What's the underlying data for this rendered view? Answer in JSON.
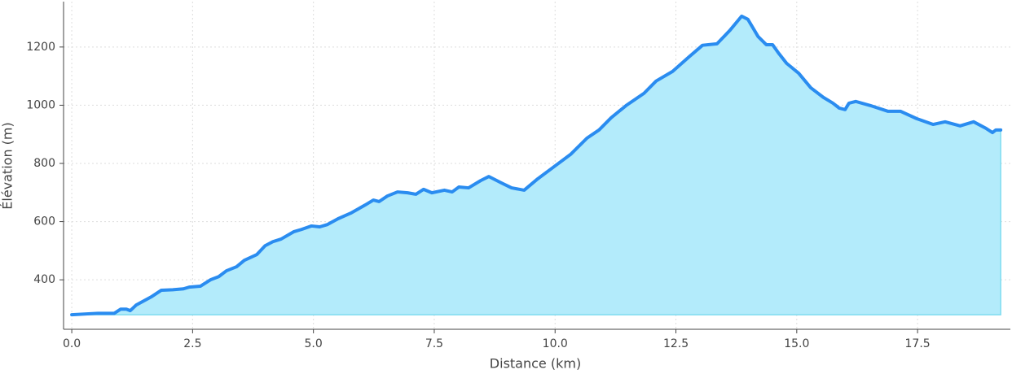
{
  "chart_data": {
    "type": "area-line",
    "x_label": "Distance (km)",
    "y_label": "Élévation (m)",
    "x": [
      0,
      0.54,
      0.88,
      1.01,
      1.13,
      1.21,
      1.33,
      1.64,
      1.85,
      2.09,
      2.31,
      2.43,
      2.66,
      2.87,
      3.04,
      3.2,
      3.41,
      3.57,
      3.83,
      4.0,
      4.16,
      4.33,
      4.59,
      4.75,
      4.96,
      5.13,
      5.29,
      5.51,
      5.77,
      6.07,
      6.24,
      6.36,
      6.53,
      6.74,
      6.95,
      7.12,
      7.28,
      7.45,
      7.71,
      7.87,
      8.01,
      8.21,
      8.46,
      8.63,
      8.89,
      9.1,
      9.36,
      9.64,
      9.98,
      10.32,
      10.66,
      10.91,
      11.16,
      11.47,
      11.84,
      12.09,
      12.43,
      12.77,
      13.05,
      13.35,
      13.61,
      13.86,
      13.99,
      14.2,
      14.37,
      14.5,
      14.62,
      14.79,
      15.04,
      15.29,
      15.55,
      15.75,
      15.88,
      16.0,
      16.08,
      16.22,
      16.52,
      16.89,
      17.15,
      17.48,
      17.82,
      18.07,
      18.38,
      18.66,
      18.92,
      19.05,
      19.12,
      19.22
    ],
    "series": [
      {
        "name": "Élévation",
        "color": "#2a8cf0",
        "fill": "#b3ebfb",
        "values": [
          280,
          285,
          285,
          299,
          299,
          294,
          313,
          341,
          364,
          366,
          369,
          375,
          378,
          400,
          411,
          431,
          445,
          467,
          487,
          517,
          531,
          540,
          565,
          573,
          585,
          582,
          590,
          610,
          629,
          657,
          674,
          669,
          688,
          702,
          699,
          694,
          711,
          699,
          708,
          702,
          719,
          716,
          741,
          755,
          733,
          716,
          708,
          747,
          789,
          831,
          887,
          915,
          957,
          999,
          1041,
          1083,
          1116,
          1166,
          1206,
          1211,
          1256,
          1306,
          1295,
          1236,
          1208,
          1208,
          1180,
          1144,
          1110,
          1060,
          1027,
          1007,
          990,
          985,
          1007,
          1013,
          999,
          979,
          979,
          954,
          934,
          943,
          929,
          943,
          920,
          906,
          915,
          915
        ]
      }
    ],
    "xlim": [
      -0.17,
      19.42
    ],
    "ylim": [
      230,
      1356
    ],
    "xticks": [
      {
        "value": 0,
        "label": "0.0"
      },
      2.5,
      {
        "value": 5,
        "label": "5.0"
      },
      7.5,
      {
        "value": 10,
        "label": "10.0"
      },
      12.5,
      {
        "value": 15,
        "label": "15.0"
      },
      17.5
    ],
    "yticks": [
      400,
      600,
      800,
      1000,
      1200
    ],
    "grid": true
  }
}
